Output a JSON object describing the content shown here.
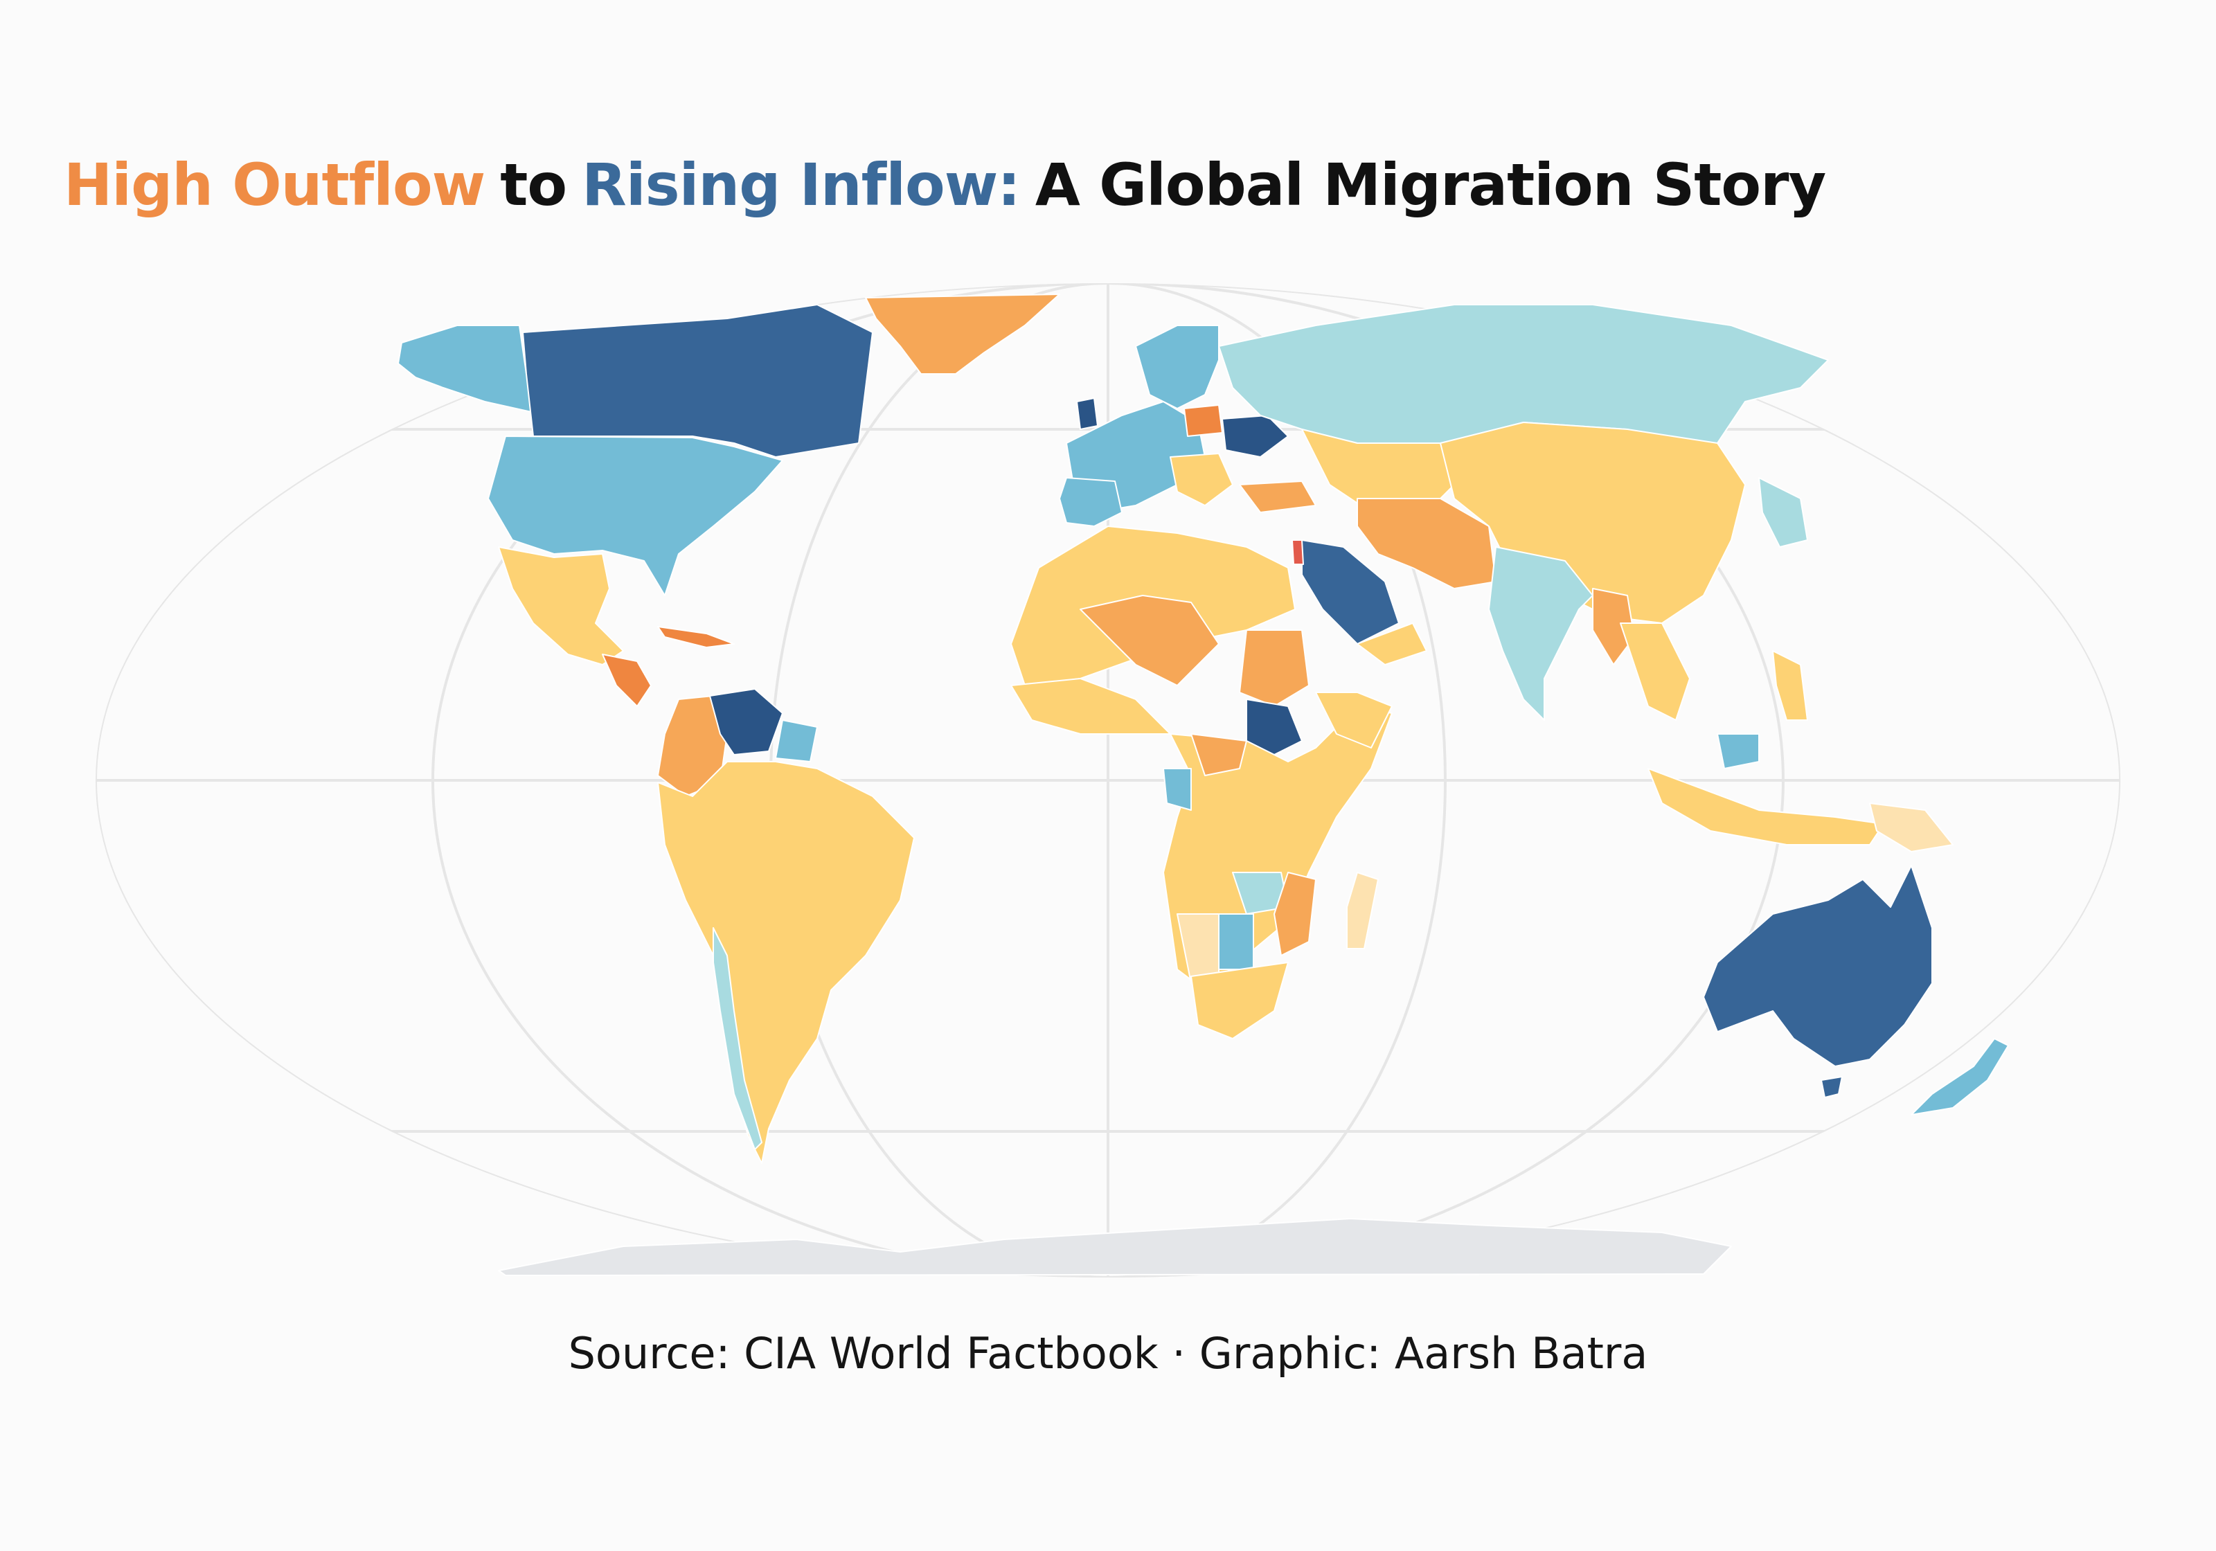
{
  "title": {
    "part1": "High Outflow",
    "part2": "to",
    "part3": "Rising Inflow:",
    "part4": "A Global Migration Story",
    "color1": "#ef8c45",
    "color2": "#111111",
    "color3": "#3b6a9a",
    "color4": "#111111"
  },
  "source": "Source: CIA World Factbook · Graphic: Aarsh Batra",
  "colors": {
    "highest_inflow": "#2a5486",
    "high_inflow": "#376597",
    "mid_inflow": "#73bcd6",
    "low_inflow": "#a8dbe0",
    "neutral_light": "#fde2b0",
    "low_outflow": "#fdd274",
    "mid_outflow": "#f6a757",
    "high_outflow": "#ef8640",
    "highest_outflow": "#e25a4b",
    "no_data": "#e4e6e9"
  }
}
